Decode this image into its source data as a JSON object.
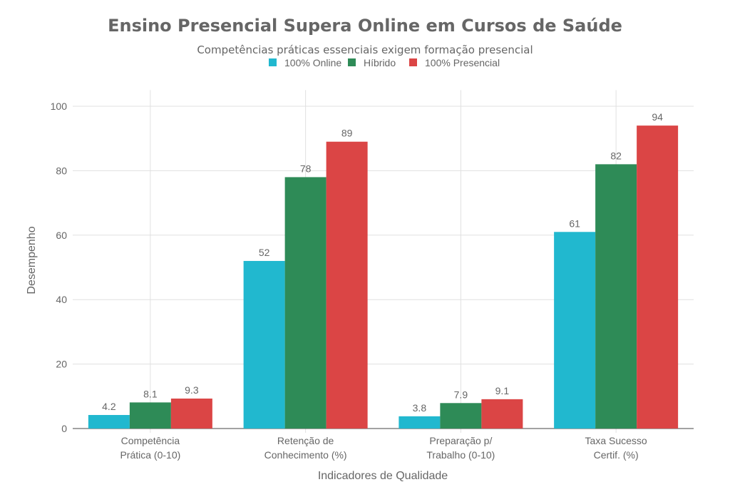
{
  "chart_data": {
    "type": "bar",
    "title": "Ensino Presencial Supera Online em Cursos de Saúde",
    "subtitle": "Competências práticas essenciais exigem formação presencial",
    "xlabel": "Indicadores de Qualidade",
    "ylabel": "Desempenho",
    "ylim": [
      0,
      105
    ],
    "yticks": [
      0,
      20,
      40,
      60,
      80,
      100
    ],
    "grid": true,
    "legend_placement": "top-center",
    "categories": [
      [
        "Competência",
        "Prática (0-10)"
      ],
      [
        "Retenção de",
        "Conhecimento (%)"
      ],
      [
        "Preparação p/",
        "Trabalho (0-10)"
      ],
      [
        "Taxa Sucesso",
        "Certif. (%)"
      ]
    ],
    "series": [
      {
        "name": "100% Online",
        "color": "#21b8cf",
        "values": [
          4.2,
          52,
          3.8,
          61
        ],
        "labels": [
          "4.2",
          "52",
          "3.8",
          "61"
        ]
      },
      {
        "name": "Híbrido",
        "color": "#2e8b57",
        "values": [
          8.1,
          78,
          7.9,
          82
        ],
        "labels": [
          "8.1",
          "78",
          "7.9",
          "82"
        ]
      },
      {
        "name": "100% Presencial",
        "color": "#db4545",
        "values": [
          9.3,
          89,
          9.1,
          94
        ],
        "labels": [
          "9.3",
          "89",
          "9.1",
          "94"
        ]
      }
    ]
  }
}
